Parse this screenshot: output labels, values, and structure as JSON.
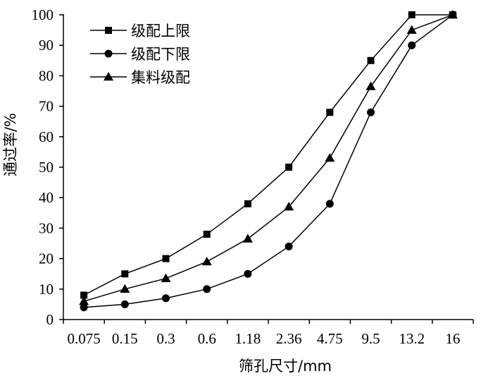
{
  "chart_data": {
    "type": "line",
    "categories": [
      "0.075",
      "0.15",
      "0.3",
      "0.6",
      "1.18",
      "2.36",
      "4.75",
      "9.5",
      "13.2",
      "16"
    ],
    "xlabel": "筛孔尺寸/mm",
    "ylabel": "通过率/%",
    "ylim": [
      0,
      100
    ],
    "yticks": [
      0,
      10,
      20,
      30,
      40,
      50,
      60,
      70,
      80,
      90,
      100
    ],
    "grid": false,
    "legend_position": "top-left",
    "series": [
      {
        "name": "级配上限",
        "marker": "square",
        "values": [
          8,
          15,
          20,
          28,
          38,
          50,
          68,
          85,
          100,
          100
        ]
      },
      {
        "name": "级配下限",
        "marker": "circle",
        "values": [
          4,
          5,
          7,
          10,
          15,
          24,
          38,
          68,
          90,
          100
        ]
      },
      {
        "name": "集料级配",
        "marker": "triangle",
        "values": [
          6,
          10,
          13.5,
          19,
          26.5,
          37,
          53,
          76.5,
          95,
          100
        ]
      }
    ]
  }
}
